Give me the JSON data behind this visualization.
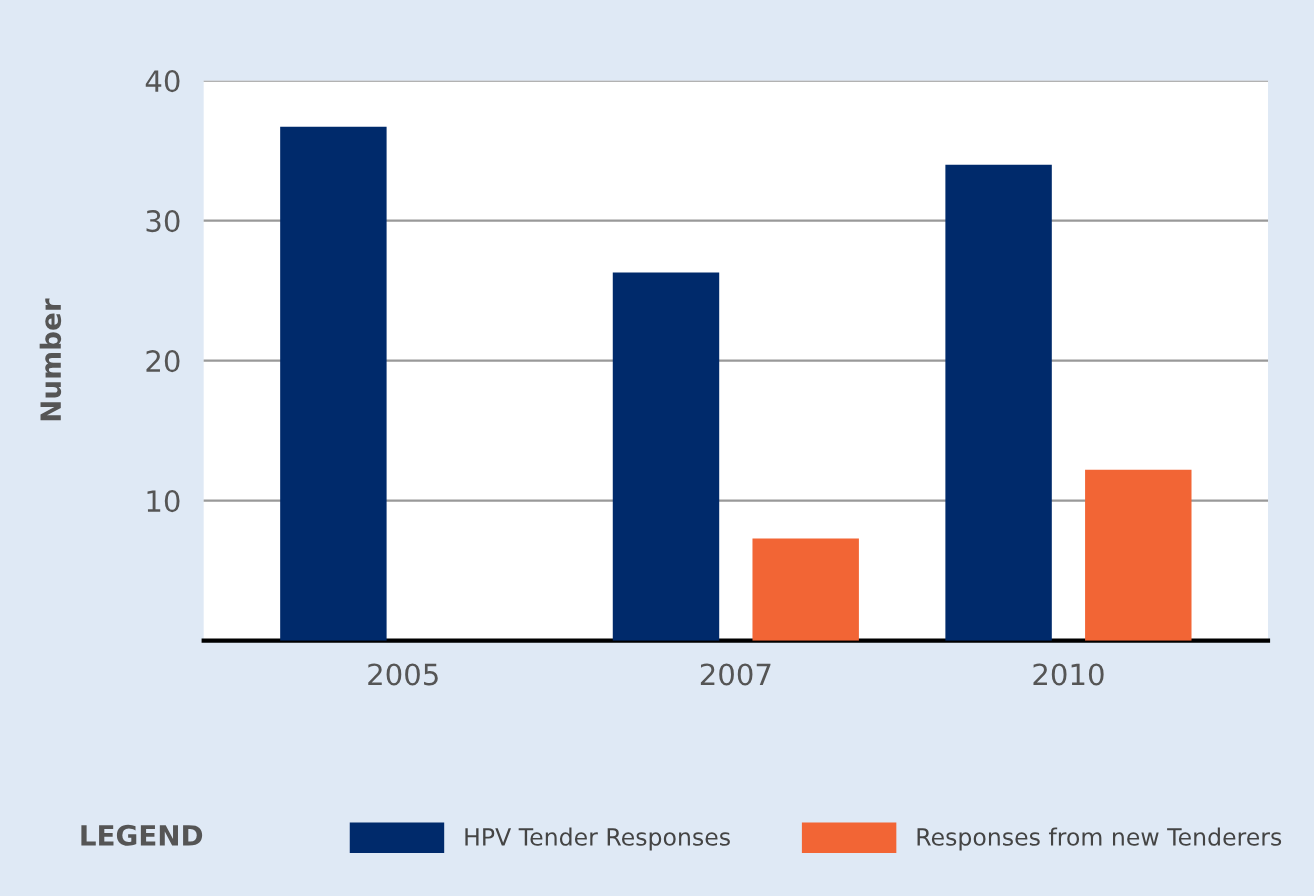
{
  "chart_data": {
    "type": "bar",
    "ylabel": "Number",
    "legend_title": "LEGEND",
    "categories": [
      "2005",
      "2007",
      "2010"
    ],
    "series": [
      {
        "name": "HPV Tender Responses",
        "color": "#002a6b",
        "values": [
          36.7,
          26.3,
          34.0
        ]
      },
      {
        "name": "Responses from new Tenderers",
        "color": "#f26535",
        "values": [
          null,
          7.3,
          12.2
        ]
      }
    ],
    "ylim": [
      0,
      40
    ],
    "yticks": [
      10,
      20,
      30,
      40
    ],
    "grid": "y",
    "legend": "bottom"
  }
}
